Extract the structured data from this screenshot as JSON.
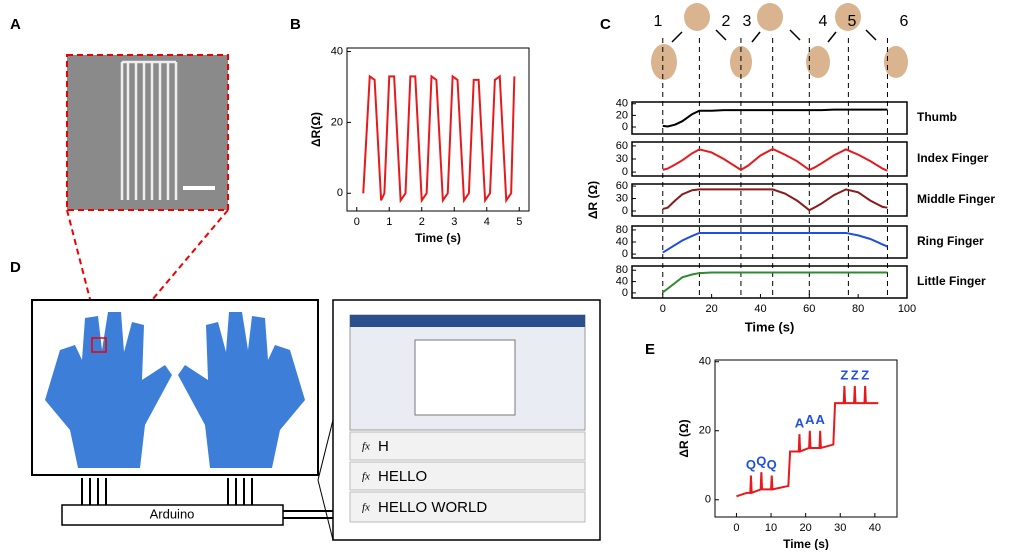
{
  "panel_letters": [
    "A",
    "B",
    "C",
    "D",
    "E"
  ],
  "arduino_label": "Arduino",
  "formula_symbol": "fx",
  "screen_lines": [
    "H",
    "HELLO",
    "HELLO  WORLD"
  ],
  "chart_data": [
    {
      "type": "line",
      "xlabel": "Time (s)",
      "ylabel": "ΔR(Ω)",
      "color": "#e8191c",
      "xlim": [
        -0.3,
        5.3
      ],
      "ylim": [
        -5,
        41
      ],
      "xticks": [
        0,
        1,
        2,
        3,
        4,
        5
      ],
      "yticks": [
        0,
        20,
        40
      ],
      "x": [
        0.2,
        0.4,
        0.55,
        0.75,
        0.85,
        1.0,
        1.15,
        1.35,
        1.5,
        1.65,
        1.8,
        2.0,
        2.15,
        2.3,
        2.45,
        2.65,
        2.8,
        2.95,
        3.1,
        3.3,
        3.45,
        3.6,
        3.75,
        3.95,
        4.1,
        4.25,
        4.4,
        4.6,
        4.75,
        4.85
      ],
      "values": [
        0,
        33,
        32,
        -2,
        0,
        33,
        33,
        -2,
        0,
        33,
        33,
        -2,
        0,
        33,
        32,
        -2,
        0,
        33,
        32,
        -2,
        0,
        32,
        32,
        -2,
        0,
        32,
        33,
        -2,
        0,
        33
      ]
    },
    {
      "type": "line-stack",
      "xlabel": "Time (s)",
      "ylabel": "ΔR (Ω)",
      "xlim": [
        -12.6,
        100
      ],
      "xticks": [
        0,
        20,
        40,
        60,
        80,
        100
      ],
      "dashed_x": [
        0,
        15,
        32,
        45,
        60,
        76,
        92
      ],
      "gesture_labels": [
        "1",
        "2",
        "3",
        "4",
        "5",
        "6"
      ],
      "x": [
        0,
        2,
        5,
        8,
        12,
        15,
        20,
        25,
        30,
        32,
        35,
        40,
        45,
        50,
        55,
        60,
        62,
        65,
        70,
        75,
        80,
        85,
        90,
        92
      ],
      "series": [
        {
          "name": "Thumb",
          "color": "#000000",
          "ylim": [
            -12,
            43
          ],
          "yticks": [
            0,
            20,
            40
          ],
          "values": [
            2,
            1,
            4,
            10,
            22,
            28,
            28,
            29,
            29,
            29,
            29,
            29,
            29,
            29,
            29,
            29,
            29,
            29,
            30,
            30,
            30,
            30,
            30,
            30
          ]
        },
        {
          "name": "Index Finger",
          "color": "#e8191c",
          "ylim": [
            -9,
            69
          ],
          "yticks": [
            0,
            30,
            60
          ],
          "values": [
            5,
            8,
            17,
            27,
            43,
            52,
            45,
            30,
            12,
            5,
            15,
            38,
            53,
            40,
            25,
            5,
            10,
            20,
            38,
            52,
            40,
            25,
            8,
            3
          ]
        },
        {
          "name": "Middle Finger",
          "color": "#8b1a1a",
          "ylim": [
            -12,
            65
          ],
          "yticks": [
            0,
            30,
            60
          ],
          "values": [
            5,
            8,
            25,
            40,
            50,
            52,
            52,
            52,
            52,
            52,
            52,
            52,
            52,
            42,
            25,
            2,
            8,
            18,
            38,
            52,
            45,
            25,
            10,
            8
          ]
        },
        {
          "name": "Ring Finger",
          "color": "#1f4fe0",
          "ylim": [
            -13,
            93
          ],
          "yticks": [
            0,
            40,
            80
          ],
          "values": [
            5,
            15,
            30,
            45,
            60,
            70,
            70,
            70,
            70,
            70,
            70,
            70,
            70,
            70,
            70,
            70,
            70,
            70,
            70,
            70,
            62,
            50,
            32,
            25
          ]
        },
        {
          "name": "Little Finger",
          "color": "#2e8b2e",
          "ylim": [
            -18,
            95
          ],
          "yticks": [
            0,
            40,
            80
          ],
          "values": [
            2,
            15,
            35,
            55,
            65,
            70,
            72,
            72,
            72,
            72,
            72,
            72,
            72,
            72,
            72,
            72,
            72,
            72,
            72,
            72,
            72,
            72,
            72,
            72
          ]
        }
      ]
    },
    {
      "type": "line",
      "xlabel": "Time (s)",
      "ylabel": "ΔR (Ω)",
      "color": "#e8191c",
      "xlim": [
        -6.2,
        46.4
      ],
      "ylim": [
        -5,
        40.5
      ],
      "xticks": [
        0,
        10,
        20,
        30,
        40
      ],
      "yticks": [
        0,
        20,
        40
      ],
      "x": [
        0,
        3,
        4,
        4.2,
        4.4,
        7,
        7.2,
        7.4,
        10,
        10.2,
        10.4,
        15,
        15.5,
        18,
        18.2,
        18.4,
        21,
        21.2,
        21.4,
        24,
        24.2,
        24.4,
        28,
        28.5,
        31,
        31.2,
        31.4,
        34,
        34.2,
        34.4,
        37,
        37.2,
        37.4,
        41
      ],
      "values": [
        1,
        2,
        2,
        7,
        2,
        3,
        8,
        3,
        3,
        7,
        3,
        4,
        14,
        14,
        19,
        14,
        15,
        20,
        15,
        15,
        20,
        15,
        16,
        28,
        28,
        33,
        28,
        28,
        33,
        28,
        28,
        33,
        28,
        28
      ],
      "annotations": [
        {
          "text": "Q",
          "x": 4.2,
          "y": 7
        },
        {
          "text": "Q",
          "x": 7.2,
          "y": 8
        },
        {
          "text": "Q",
          "x": 10.2,
          "y": 7
        },
        {
          "text": "A",
          "x": 18.2,
          "y": 19
        },
        {
          "text": "A",
          "x": 21.2,
          "y": 20
        },
        {
          "text": "A",
          "x": 24.2,
          "y": 20
        },
        {
          "text": "Z",
          "x": 31.2,
          "y": 33
        },
        {
          "text": "Z",
          "x": 34.2,
          "y": 33
        },
        {
          "text": "Z",
          "x": 37.2,
          "y": 33
        }
      ]
    }
  ]
}
